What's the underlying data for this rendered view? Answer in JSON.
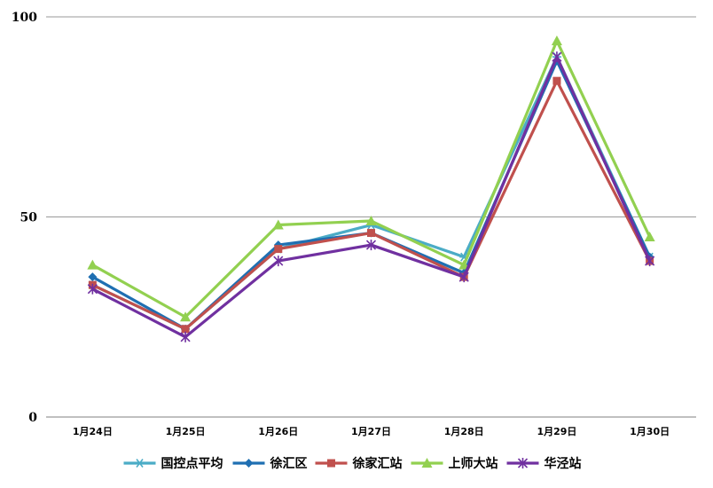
{
  "chart_data": {
    "type": "line",
    "title": "",
    "xlabel": "",
    "ylabel": "",
    "categories": [
      "1月24日",
      "1月25日",
      "1月26日",
      "1月27日",
      "1月28日",
      "1月29日",
      "1月30日"
    ],
    "ylim": [
      0,
      100
    ],
    "yticks": [
      0,
      50,
      100
    ],
    "grid": true,
    "legend": "bottom",
    "series": [
      {
        "name": "国控点平均",
        "color": "#4BACC6",
        "marker": "asterisk",
        "values": [
          33,
          22,
          42,
          48,
          40,
          90,
          40
        ]
      },
      {
        "name": "徐汇区",
        "color": "#1F6FB2",
        "marker": "diamond",
        "values": [
          35,
          22,
          43,
          46,
          36,
          89,
          40
        ]
      },
      {
        "name": "徐家汇站",
        "color": "#C0504D",
        "marker": "square",
        "values": [
          33,
          22,
          42,
          46,
          35,
          84,
          39
        ]
      },
      {
        "name": "上师大站",
        "color": "#92D050",
        "marker": "triangle",
        "values": [
          38,
          25,
          48,
          49,
          38,
          94,
          45
        ]
      },
      {
        "name": "华泾站",
        "color": "#7030A0",
        "marker": "star",
        "values": [
          32,
          20,
          39,
          43,
          35,
          90,
          39
        ]
      }
    ]
  }
}
